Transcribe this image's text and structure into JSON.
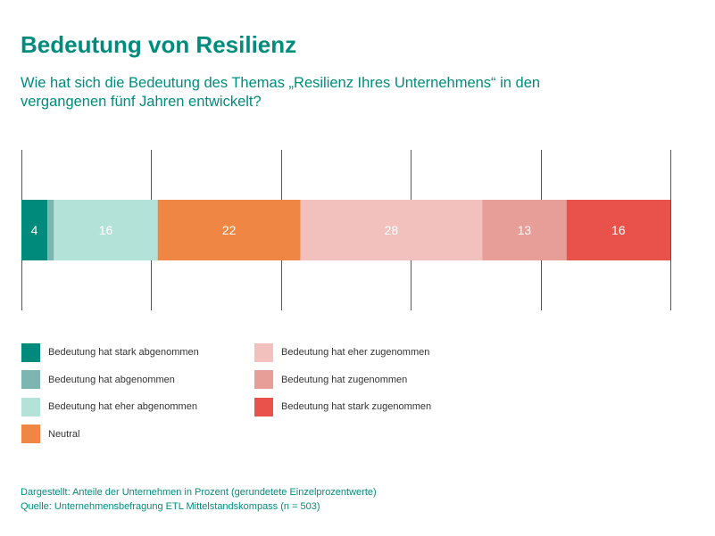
{
  "page": {
    "title": "Bedeutung von Resilienz",
    "subtitle": "Wie hat sich die Bedeutung des Themas „Resilienz Ihres Unternehmens“ in den vergangenen fünf Jahren entwickelt?",
    "footnote_1": "Dargestellt: Anteile der Unternehmen in Prozent (gerundetete Einzelprozentwerte)",
    "footnote_2": "Quelle: Unternehmensbefragung ETL Mittelstandskompass (n = 503)"
  },
  "chart_data": {
    "type": "bar",
    "orientation": "horizontal-stacked-100",
    "title": "Bedeutung von Resilienz",
    "unit": "Prozent",
    "xlim": [
      0,
      100
    ],
    "grid": true,
    "legend_position": "bottom",
    "series": [
      {
        "name": "Bedeutung hat stark abgenommen",
        "value": 4,
        "label": "4",
        "color": "#008a7c",
        "label_color": "#ffffff"
      },
      {
        "name": "Bedeutung hat abgenommen",
        "value": 1,
        "label": "",
        "color": "#7db5b0",
        "label_color": "#ffffff"
      },
      {
        "name": "Bedeutung hat eher abgenommen",
        "value": 16,
        "label": "16",
        "color": "#b3e3d8",
        "label_color": "#ffffff"
      },
      {
        "name": "Neutral",
        "value": 22,
        "label": "22",
        "color": "#ef8644",
        "label_color": "#ffffff"
      },
      {
        "name": "Bedeutung hat eher zugenommen",
        "value": 28,
        "label": "28",
        "color": "#f2c0bd",
        "label_color": "#ffffff"
      },
      {
        "name": "Bedeutung hat zugenommen",
        "value": 13,
        "label": "13",
        "color": "#e79d98",
        "label_color": "#ffffff"
      },
      {
        "name": "Bedeutung hat stark zugenommen",
        "value": 16,
        "label": "16",
        "color": "#e8524a",
        "label_color": "#ffffff"
      }
    ]
  },
  "legend": {
    "left": [
      {
        "label": "Bedeutung hat stark abgenommen",
        "color": "#008a7c"
      },
      {
        "label": "Bedeutung hat abgenommen",
        "color": "#7db5b0"
      },
      {
        "label": "Bedeutung hat eher abgenommen",
        "color": "#b3e3d8"
      },
      {
        "label": "Neutral",
        "color": "#ef8644"
      }
    ],
    "right": [
      {
        "label": "Bedeutung hat eher zugenommen",
        "color": "#f2c0bd"
      },
      {
        "label": "Bedeutung hat zugenommen",
        "color": "#e79d98"
      },
      {
        "label": "Bedeutung hat stark zugenommen",
        "color": "#e8524a"
      }
    ]
  }
}
